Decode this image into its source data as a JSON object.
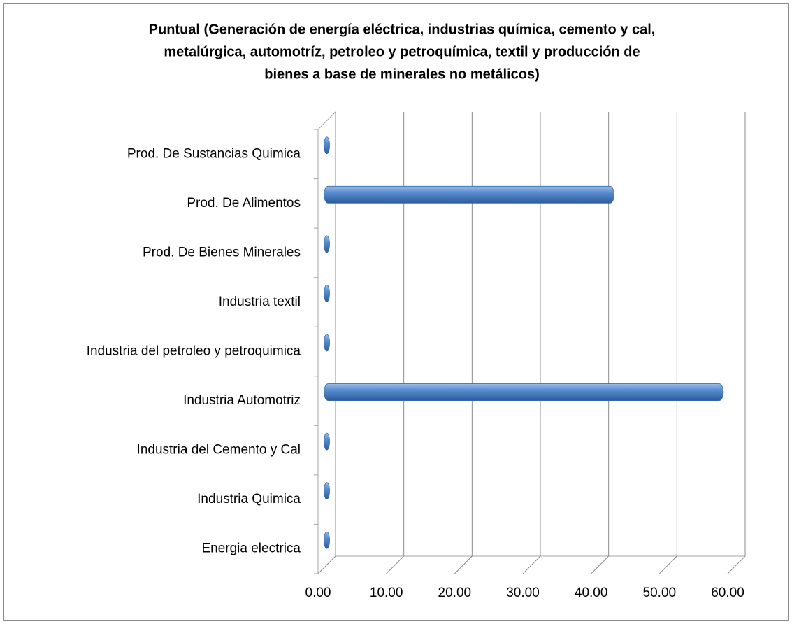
{
  "chart_data": {
    "type": "bar",
    "orientation": "horizontal",
    "title": [
      "Puntual (Generación de energía eléctrica, industrias química, cemento y cal,",
      "metalúrgica, automotríz, petroleo y petroquímica, textil y producción de",
      "bienes a base de minerales no metálicos)"
    ],
    "categories": [
      "Energia electrica",
      "Industria Quimica",
      "Industria del Cemento y Cal",
      "Industria Automotriz",
      "Industria del petroleo y petroquimica",
      "Industria textil",
      "Prod. De Bienes Minerales",
      "Prod. De Alimentos",
      "Prod. De Sustancias Quimica"
    ],
    "values": [
      0,
      0,
      0,
      58.5,
      0,
      0,
      0,
      42.5,
      0
    ],
    "color": "#4f81bd",
    "xlim": [
      0,
      60
    ],
    "xticks": [
      {
        "value": 0,
        "label": "0.00"
      },
      {
        "value": 10,
        "label": "10.00"
      },
      {
        "value": 20,
        "label": "20.00"
      },
      {
        "value": 30,
        "label": "30.00"
      },
      {
        "value": 40,
        "label": "40.00"
      },
      {
        "value": 50,
        "label": "50.00"
      },
      {
        "value": 60,
        "label": "60.00"
      }
    ],
    "grid": true
  }
}
